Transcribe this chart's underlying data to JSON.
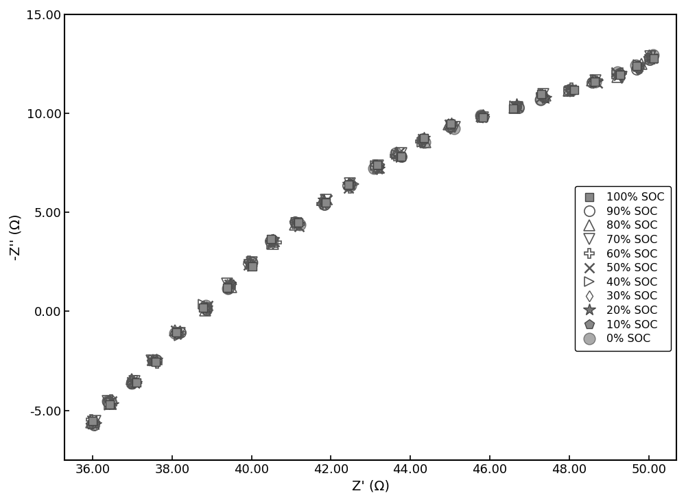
{
  "xlabel": "Z' (Ω)",
  "ylabel": "-Z'' (Ω)",
  "xlim": [
    35.3,
    50.7
  ],
  "ylim": [
    -7.5,
    15.0
  ],
  "xticks": [
    36.0,
    38.0,
    40.0,
    42.0,
    44.0,
    46.0,
    48.0,
    50.0
  ],
  "yticks": [
    -5.0,
    0.0,
    5.0,
    10.0,
    15.0
  ],
  "ytick_labels": [
    "-5.00",
    "0.00",
    "5.00",
    "10.00",
    "15.00"
  ],
  "xtick_labels": [
    "36.00",
    "38.00",
    "40.00",
    "42.00",
    "44.00",
    "46.00",
    "48.00",
    "50.00"
  ],
  "cluster_x": [
    36.0,
    36.45,
    37.05,
    37.55,
    38.15,
    38.85,
    39.45,
    39.95,
    40.55,
    41.15,
    41.85,
    42.5,
    43.15,
    43.7,
    44.3,
    45.05,
    45.8,
    46.65,
    47.35,
    48.05,
    48.65,
    49.25,
    49.75,
    50.05
  ],
  "cluster_y": [
    -5.6,
    -4.6,
    -3.5,
    -2.5,
    -1.1,
    0.2,
    1.3,
    2.4,
    3.5,
    4.4,
    5.5,
    6.35,
    7.25,
    7.9,
    8.65,
    9.35,
    9.85,
    10.35,
    10.85,
    11.25,
    11.6,
    11.95,
    12.35,
    12.85
  ],
  "soc_labels": [
    "100% SOC",
    "90% SOC",
    "80% SOC",
    "70% SOC",
    "60% SOC",
    "50% SOC",
    "40% SOC",
    "30% SOC",
    "20% SOC",
    "10% SOC",
    "0% SOC"
  ],
  "background_color": "#ffffff",
  "axes_color": "#000000",
  "tick_fontsize": 13,
  "label_fontsize": 14,
  "legend_fontsize": 11.5
}
